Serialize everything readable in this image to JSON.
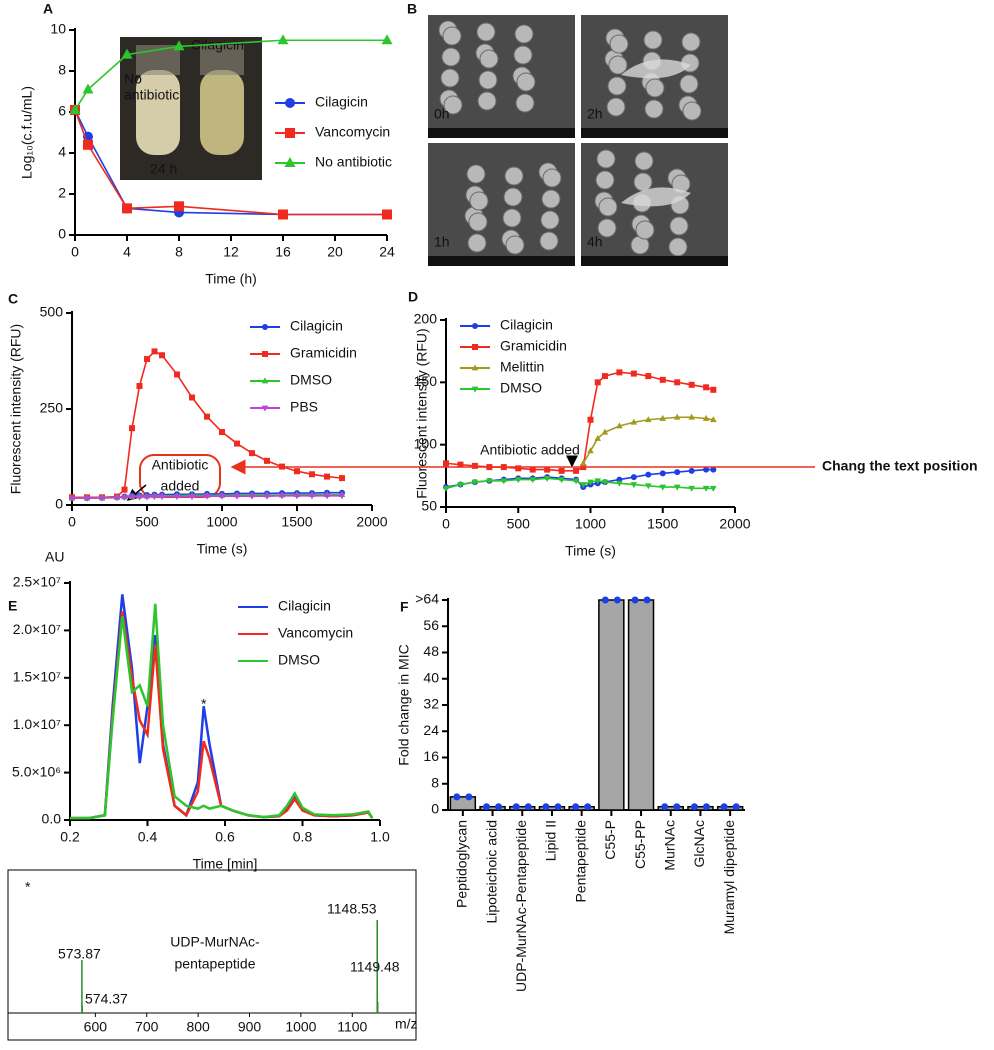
{
  "annotation": "Chang the text position",
  "chart_data": [
    {
      "panel": "A",
      "type": "line",
      "xlabel": "Time (h)",
      "ylabel": "Log₁₀(c.f.u/mL)",
      "x": [
        0,
        1,
        4,
        8,
        16,
        24
      ],
      "xlim": [
        0,
        24
      ],
      "xticks": [
        0,
        4,
        8,
        12,
        16,
        20,
        24
      ],
      "ylim": [
        0,
        10
      ],
      "yticks": [
        0,
        2,
        4,
        6,
        8,
        10
      ],
      "series": [
        {
          "name": "Cilagicin",
          "color": "#1f3fe6",
          "marker": "circle",
          "values": [
            6.1,
            4.8,
            1.3,
            1.1,
            1.0,
            1.0
          ]
        },
        {
          "name": "Vancomycin",
          "color": "#f02a1e",
          "marker": "square",
          "values": [
            6.1,
            4.4,
            1.3,
            1.4,
            1.0,
            1.0
          ]
        },
        {
          "name": "No antibiotic",
          "color": "#2cc52c",
          "marker": "triangle",
          "values": [
            6.1,
            7.1,
            8.8,
            9.2,
            9.5,
            9.5
          ]
        }
      ],
      "inset_labels": [
        [
          "No",
          "antibiotic"
        ],
        [
          "Cilagicin"
        ],
        [
          "24 h"
        ]
      ]
    },
    {
      "panel": "B",
      "type": "image",
      "labels": [
        "0h",
        "2h",
        "1h",
        "4h"
      ]
    },
    {
      "panel": "C",
      "type": "line",
      "xlabel": "Time (s)",
      "ylabel": "Fluorescent intensity (RFU)",
      "x": [
        0,
        100,
        200,
        300,
        350,
        400,
        450,
        500,
        550,
        600,
        700,
        800,
        900,
        1000,
        1100,
        1200,
        1300,
        1400,
        1500,
        1600,
        1700,
        1800
      ],
      "xlim": [
        0,
        2000
      ],
      "xticks": [
        0,
        500,
        1000,
        1500,
        2000
      ],
      "ylim": [
        0,
        500
      ],
      "yticks": [
        0,
        250,
        500
      ],
      "series": [
        {
          "name": "Cilagicin",
          "color": "#1f3fe6",
          "marker": "circle",
          "values": [
            18,
            18,
            19,
            20,
            22,
            24,
            25,
            26,
            27,
            27,
            28,
            28,
            29,
            29,
            30,
            30,
            30,
            31,
            31,
            31,
            32,
            32
          ]
        },
        {
          "name": "Gramicidin",
          "color": "#f02a1e",
          "marker": "square",
          "values": [
            20,
            20,
            20,
            22,
            40,
            200,
            310,
            380,
            400,
            390,
            340,
            280,
            230,
            190,
            160,
            135,
            115,
            100,
            88,
            80,
            74,
            70
          ]
        },
        {
          "name": "DMSO",
          "color": "#2cc52c",
          "marker": "triangle",
          "values": [
            18,
            18,
            19,
            20,
            21,
            22,
            23,
            23,
            24,
            24,
            24,
            25,
            25,
            25,
            26,
            26,
            26,
            26,
            27,
            27,
            27,
            27
          ]
        },
        {
          "name": "PBS",
          "color": "#c040e0",
          "marker": "triangle-down",
          "values": [
            18,
            18,
            18,
            19,
            20,
            21,
            21,
            21,
            22,
            22,
            22,
            22,
            23,
            23,
            23,
            23,
            23,
            24,
            24,
            24,
            24,
            24
          ]
        }
      ],
      "annotation": [
        "Antibiotic",
        "added"
      ]
    },
    {
      "panel": "D",
      "type": "line",
      "xlabel": "Time (s)",
      "ylabel": "Fluorescent intensity (RFU)",
      "x": [
        0,
        100,
        200,
        300,
        400,
        500,
        600,
        700,
        800,
        900,
        950,
        1000,
        1050,
        1100,
        1200,
        1300,
        1400,
        1500,
        1600,
        1700,
        1800,
        1850
      ],
      "xlim": [
        0,
        2000
      ],
      "xticks": [
        0,
        500,
        1000,
        1500,
        2000
      ],
      "ylim": [
        50,
        200
      ],
      "yticks": [
        50,
        100,
        150,
        200
      ],
      "series": [
        {
          "name": "Cilagicin",
          "color": "#1f3fe6",
          "marker": "circle",
          "values": [
            66,
            68,
            70,
            71,
            72,
            73,
            73,
            74,
            73,
            72,
            66,
            68,
            69,
            70,
            72,
            74,
            76,
            77,
            78,
            79,
            80,
            80
          ]
        },
        {
          "name": "Gramicidin",
          "color": "#f02a1e",
          "marker": "square",
          "values": [
            85,
            84,
            83,
            82,
            82,
            81,
            80,
            80,
            79,
            79,
            82,
            120,
            150,
            155,
            158,
            157,
            155,
            152,
            150,
            148,
            146,
            144
          ]
        },
        {
          "name": "Melittin",
          "color": "#a39a1c",
          "marker": "triangle",
          "values": [
            null,
            null,
            null,
            null,
            null,
            null,
            null,
            null,
            null,
            null,
            85,
            95,
            105,
            110,
            115,
            118,
            120,
            121,
            122,
            122,
            121,
            120
          ]
        },
        {
          "name": "DMSO",
          "color": "#2cc52c",
          "marker": "triangle-down",
          "values": [
            65,
            68,
            70,
            71,
            71,
            72,
            72,
            73,
            72,
            71,
            68,
            70,
            71,
            70,
            69,
            68,
            67,
            66,
            66,
            65,
            65,
            65
          ]
        }
      ],
      "annotation": [
        "Antibiotic added"
      ]
    },
    {
      "panel": "E",
      "type": "line",
      "title": "AU",
      "xlabel": "Time [min]",
      "annotation": "*",
      "x": [
        0.2,
        0.25,
        0.29,
        0.31,
        0.335,
        0.36,
        0.38,
        0.4,
        0.42,
        0.44,
        0.47,
        0.5,
        0.53,
        0.545,
        0.56,
        0.59,
        0.62,
        0.66,
        0.7,
        0.74,
        0.76,
        0.78,
        0.8,
        0.83,
        0.88,
        0.93,
        0.97,
        0.98
      ],
      "xlim": [
        0.2,
        1
      ],
      "xticks": [
        0.2,
        0.4,
        0.6,
        0.8,
        {
          "value": 1,
          "label": "1.0"
        }
      ],
      "ylim": [
        0,
        25000000
      ],
      "yticks": [
        {
          "value": 0,
          "label": "0.0"
        },
        {
          "value": 5000000,
          "label": "5.0×10⁶"
        },
        {
          "value": 10000000,
          "label": "1.0×10⁷"
        },
        {
          "value": 15000000,
          "label": "1.5×10⁷"
        },
        {
          "value": 20000000,
          "label": "2.0×10⁷"
        },
        {
          "value": 25000000,
          "label": "2.5×10⁷"
        }
      ],
      "series": [
        {
          "name": "Cilagicin",
          "color": "#1f3fe6",
          "values": [
            200000,
            200000,
            500000,
            12000000,
            23800000,
            16000000,
            6000000,
            12000000,
            19500000,
            8000000,
            1500000,
            500000,
            4000000,
            12000000,
            8000000,
            1500000,
            1000000,
            500000,
            300000,
            400000,
            1200000,
            2500000,
            1200000,
            500000,
            400000,
            500000,
            800000,
            200000
          ]
        },
        {
          "name": "Vancomycin",
          "color": "#f02a1e",
          "values": [
            200000,
            200000,
            500000,
            11000000,
            22000000,
            15000000,
            10500000,
            9000000,
            18500000,
            7500000,
            1500000,
            500000,
            3000000,
            8300000,
            6500000,
            1500000,
            1000000,
            500000,
            300000,
            400000,
            1000000,
            2200000,
            1000000,
            500000,
            400000,
            500000,
            800000,
            200000
          ]
        },
        {
          "name": "DMSO",
          "color": "#2cc52c",
          "values": [
            200000,
            200000,
            500000,
            10500000,
            21500000,
            13500000,
            14200000,
            12000000,
            22800000,
            10000000,
            2500000,
            1500000,
            1200000,
            1500000,
            1200000,
            1500000,
            1000000,
            500000,
            300000,
            500000,
            1500000,
            2800000,
            1300000,
            600000,
            500000,
            600000,
            900000,
            200000
          ]
        }
      ]
    },
    {
      "type": "spectrum",
      "title": "*",
      "text": [
        "UDP-MurNAc-",
        "pentapeptide"
      ],
      "xlabel": "m/z",
      "x": [
        573.87,
        574.37,
        1148.53,
        1149.48
      ],
      "values": [
        57,
        8,
        100,
        12
      ],
      "color": "#2a8a2a",
      "xlim": [
        430,
        1224
      ],
      "xticks": [
        600,
        700,
        800,
        900,
        1000,
        1100
      ],
      "ylim": [
        0,
        100
      ]
    },
    {
      "panel": "F",
      "type": "bar",
      "ylabel": "Fold change in MIC",
      "categories": [
        "Peptidoglycan",
        "Lipoteichoic acid",
        "UDP-MurNAc-Pentapeptide",
        "Lipid II",
        "Pentapeptide",
        "C55-P",
        "C55-PP",
        "MurNAc",
        "GlcNAc",
        "Muramyl dipeptide"
      ],
      "values": [
        4,
        1,
        1,
        1,
        1,
        64,
        64,
        1,
        1,
        1
      ],
      "replicates": [
        [
          4,
          4
        ],
        [
          1,
          1
        ],
        [
          1,
          1
        ],
        [
          1,
          1
        ],
        [
          1,
          1
        ],
        [
          64,
          64
        ],
        [
          64,
          64
        ],
        [
          1,
          1
        ],
        [
          1,
          1
        ],
        [
          1,
          1
        ]
      ],
      "color": "#a6a6a6",
      "dot_color": "#1f3fe6",
      "ylim": [
        0,
        64
      ],
      "yticks": [
        0,
        8,
        16,
        24,
        32,
        40,
        48,
        56,
        {
          "value": 64,
          "label": ">64"
        }
      ]
    }
  ]
}
